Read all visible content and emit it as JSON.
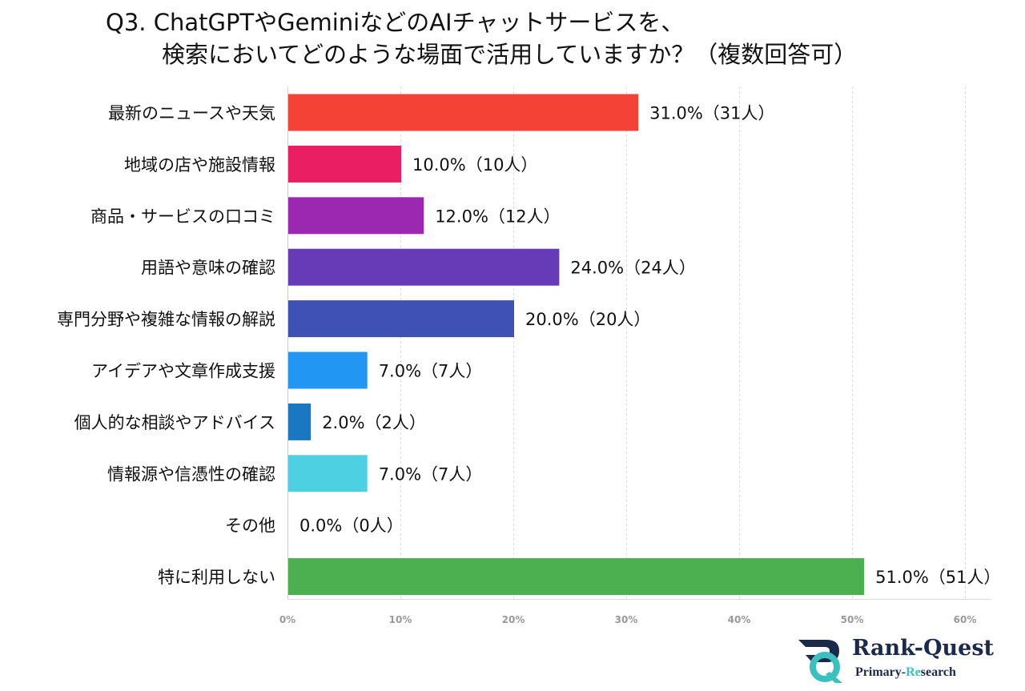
{
  "chart_data": {
    "type": "bar",
    "orientation": "horizontal",
    "title_lines": [
      "Q3. ChatGPTやGeminiなどのAIチャットサービスを、",
      "検索においてどのような場面で活用していますか？（複数回答可）"
    ],
    "categories": [
      "最新のニュースや天気",
      "地域の店や施設情報",
      "商品・サービスの口コミ",
      "用語や意味の確認",
      "専門分野や複雑な情報の解説",
      "アイデアや文章作成支援",
      "個人的な相談やアドバイス",
      "情報源や信憑性の確認",
      "その他",
      "特に利用しない"
    ],
    "values": [
      31.0,
      10.0,
      12.0,
      24.0,
      20.0,
      7.0,
      2.0,
      7.0,
      0.0,
      51.0
    ],
    "data_labels": [
      "31.0%（31人）",
      "10.0%（10人）",
      "12.0%（12人）",
      "24.0%（24人）",
      "20.0%（20人）",
      "7.0%（7人）",
      "2.0%（2人）",
      "7.0%（7人）",
      "0.0%（0人）",
      "51.0%（51人）"
    ],
    "colors": [
      "#f44336",
      "#e91e63",
      "#9c27b0",
      "#673ab7",
      "#3f51b5",
      "#2196f3",
      "#1a78c2",
      "#4dd0e1",
      "#9e9e9e",
      "#4caf50"
    ],
    "xlim": [
      0,
      60
    ],
    "xticks": [
      0,
      10,
      20,
      30,
      40,
      50,
      60
    ],
    "xtick_labels": [
      "0%",
      "10%",
      "20%",
      "30%",
      "40%",
      "50%",
      "60%"
    ],
    "xlabel": "",
    "ylabel": "",
    "grid": true,
    "gridline_color": "#dddddd",
    "tick_label_color": "#999999"
  },
  "brand": {
    "name": "Rank-Quest",
    "sub_prefix": "Primary-",
    "sub_highlight": "Re",
    "sub_suffix": "search",
    "primary_color": "#1b2a4a",
    "accent_color": "#3bbfbf"
  }
}
